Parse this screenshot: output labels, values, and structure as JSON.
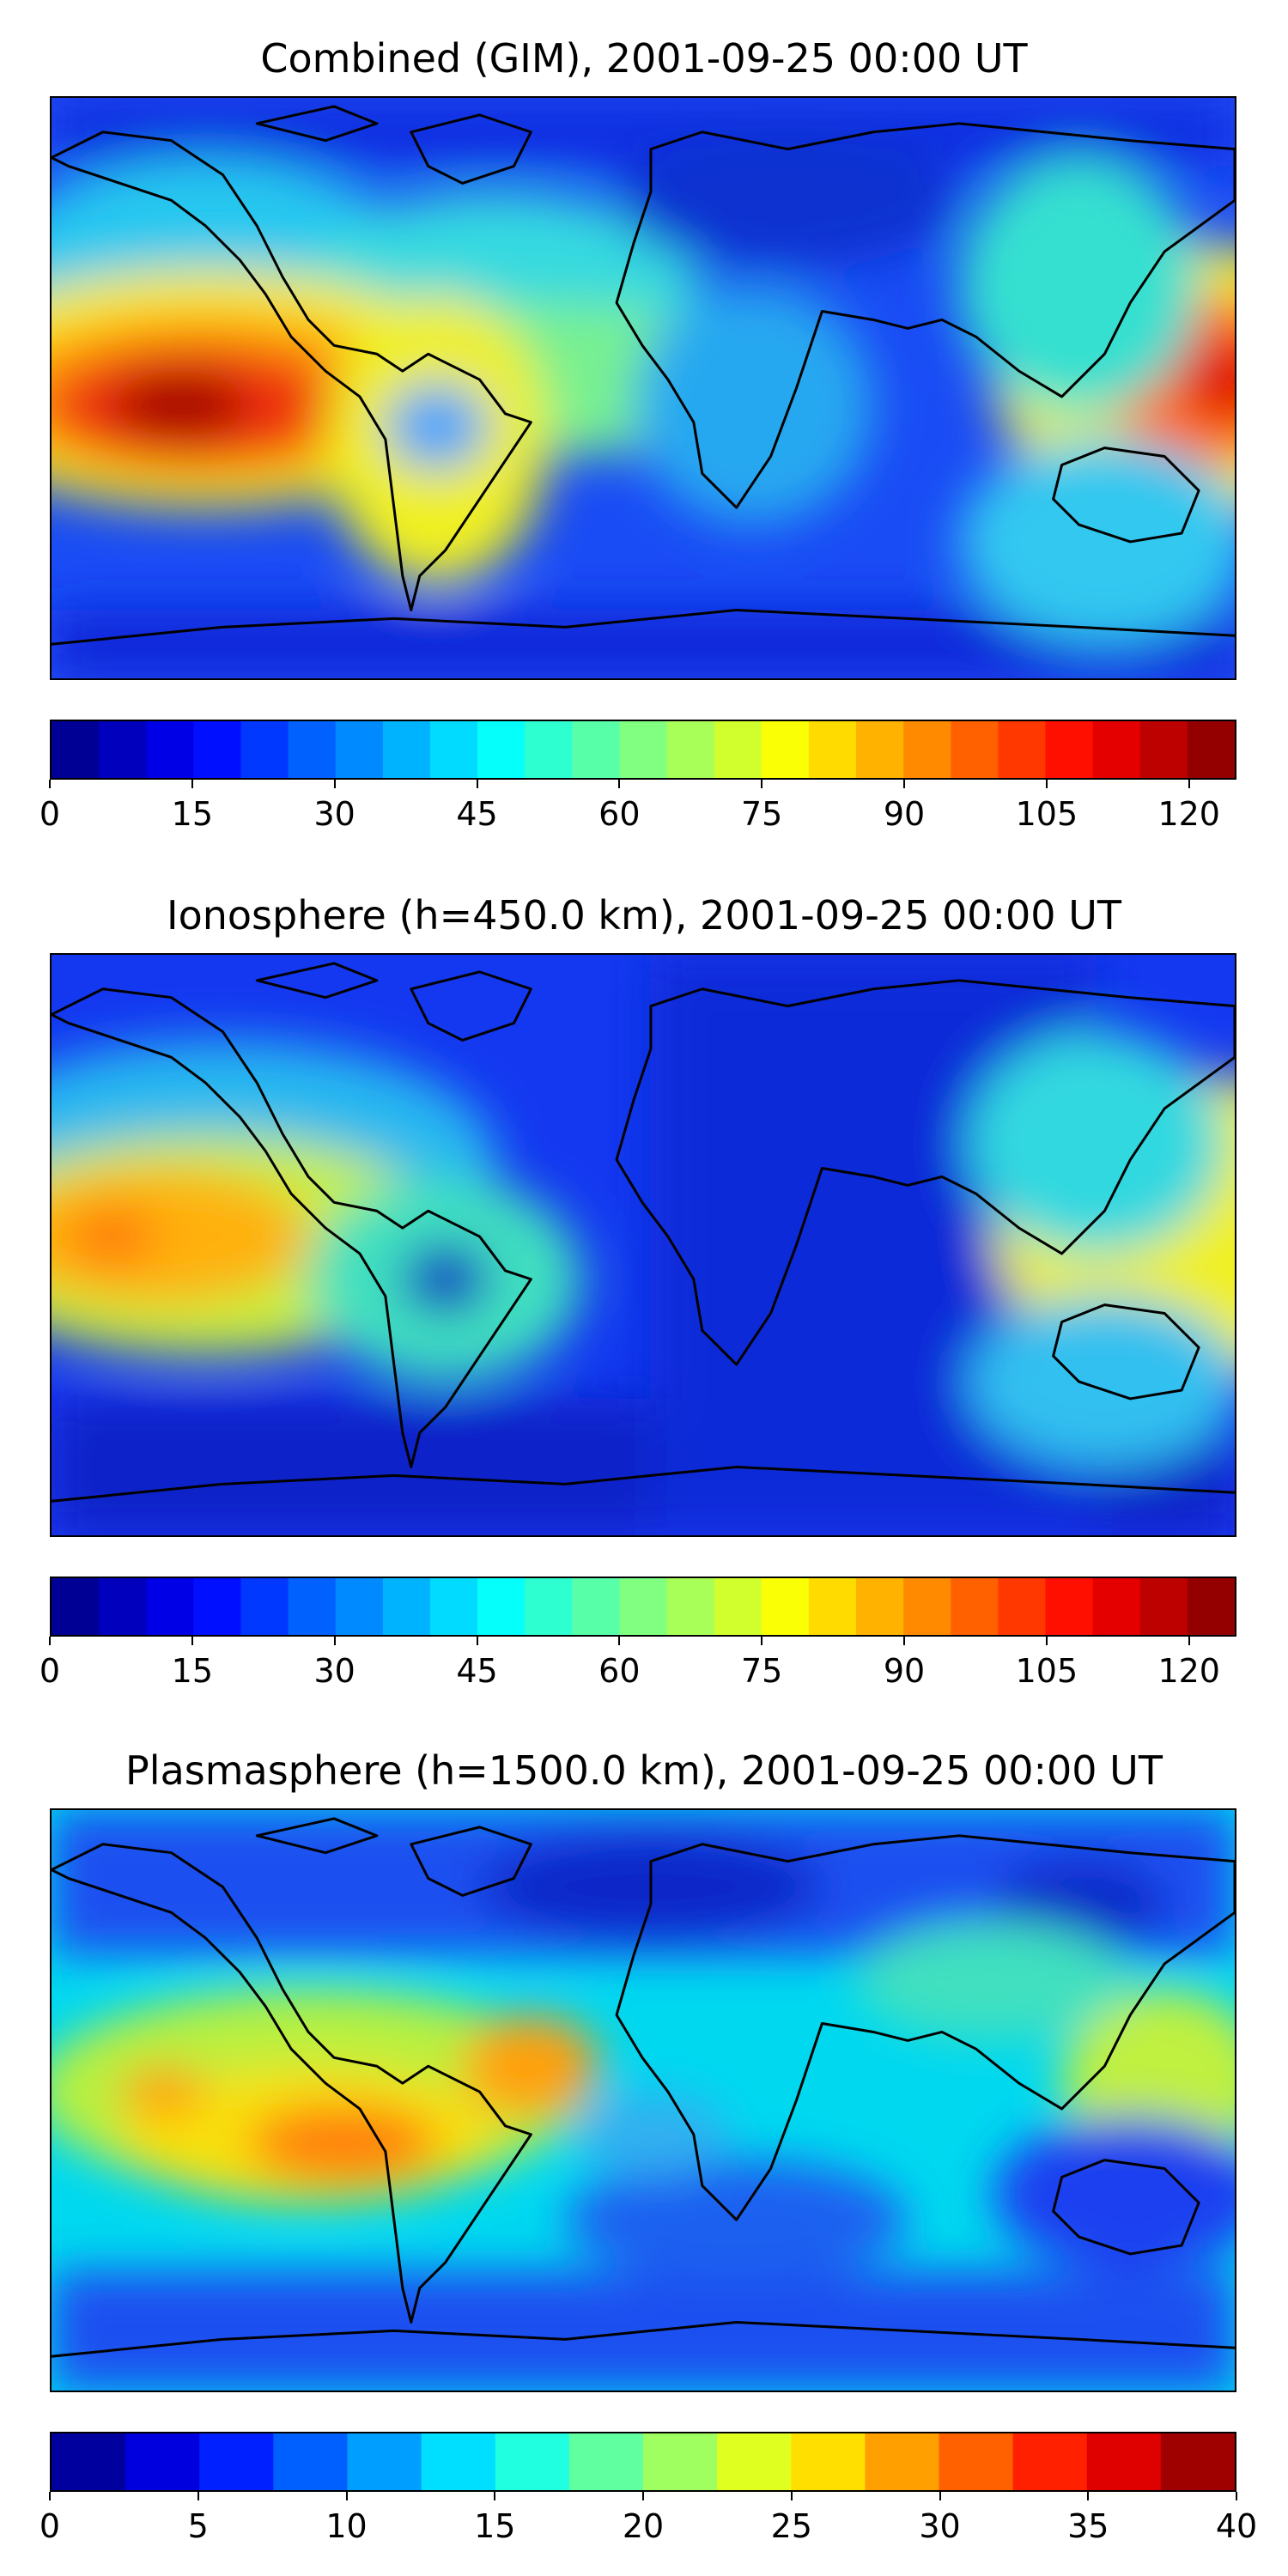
{
  "panels": [
    {
      "title": "Combined (GIM), 2001-09-25 00:00 UT",
      "colorbar": {
        "min": 0,
        "max": 125,
        "levels": 25,
        "ticks": [
          "0",
          "15",
          "30",
          "45",
          "60",
          "75",
          "90",
          "105",
          "120"
        ]
      }
    },
    {
      "title": "Ionosphere  (h=450.0 km), 2001-09-25 00:00 UT",
      "colorbar": {
        "min": 0,
        "max": 125,
        "levels": 25,
        "ticks": [
          "0",
          "15",
          "30",
          "45",
          "60",
          "75",
          "90",
          "105",
          "120"
        ]
      }
    },
    {
      "title": "Plasmasphere (h=1500.0 km), 2001-09-25 00:00 UT",
      "colorbar": {
        "min": 0,
        "max": 40,
        "levels": 16,
        "ticks": [
          "0",
          "5",
          "10",
          "15",
          "20",
          "25",
          "30",
          "35",
          "40"
        ]
      }
    }
  ],
  "colormap": "jet",
  "colors": {
    "coastline": "#000000",
    "map_background": "#1d4dfa"
  }
}
